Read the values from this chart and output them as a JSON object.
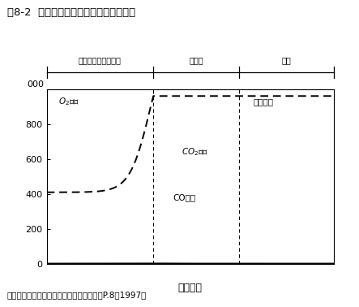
{
  "title": "図8-2  火災時の室内の温度、濃度の変化",
  "citation": "引用文献：火災便覧　第３版　共立出版　P.8（1997）",
  "xlabel": "時間経過",
  "ylim": [
    0,
    1000
  ],
  "yticks": [
    0,
    200,
    400,
    600,
    800
  ],
  "ytick_labels": [
    "0",
    "200",
    "400",
    "600",
    "800"
  ],
  "ytop_label": "000",
  "phase_labels": [
    "火災の初期，成長期",
    "火盛期",
    "終期"
  ],
  "phase_boundaries": [
    0.37,
    0.67
  ],
  "background_color": "#ffffff",
  "line_color": "#000000"
}
